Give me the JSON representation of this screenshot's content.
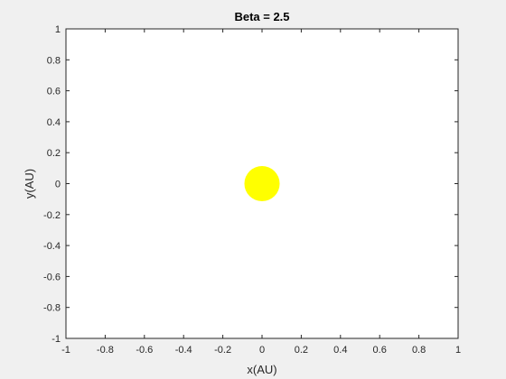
{
  "chart_data": {
    "type": "scatter",
    "title": "Beta = 2.5",
    "xlabel": "x(AU)",
    "ylabel": "y(AU)",
    "xlim": [
      -1,
      1
    ],
    "ylim": [
      -1,
      1
    ],
    "xticks": [
      -1,
      -0.8,
      -0.6,
      -0.4,
      -0.2,
      0,
      0.2,
      0.4,
      0.6,
      0.8,
      1
    ],
    "yticks": [
      -1,
      -0.8,
      -0.6,
      -0.4,
      -0.2,
      0,
      0.2,
      0.4,
      0.6,
      0.8,
      1
    ],
    "xtick_labels": [
      "-1",
      "-0.8",
      "-0.6",
      "-0.4",
      "-0.2",
      "0",
      "0.2",
      "0.4",
      "0.6",
      "0.8",
      "1"
    ],
    "ytick_labels": [
      "-1",
      "-0.8",
      "-0.6",
      "-0.4",
      "-0.2",
      "0",
      "0.2",
      "0.4",
      "0.6",
      "0.8",
      "1"
    ],
    "grid": false,
    "series": [
      {
        "points": [
          {
            "x": 0,
            "y": 0,
            "radius": 0.1
          }
        ],
        "color": "#ffff00"
      }
    ]
  },
  "colors": {
    "figure_background": "#f0f0f0",
    "axes_background": "#ffffff",
    "axis_color": "#262626",
    "marker": "#ffff00"
  }
}
